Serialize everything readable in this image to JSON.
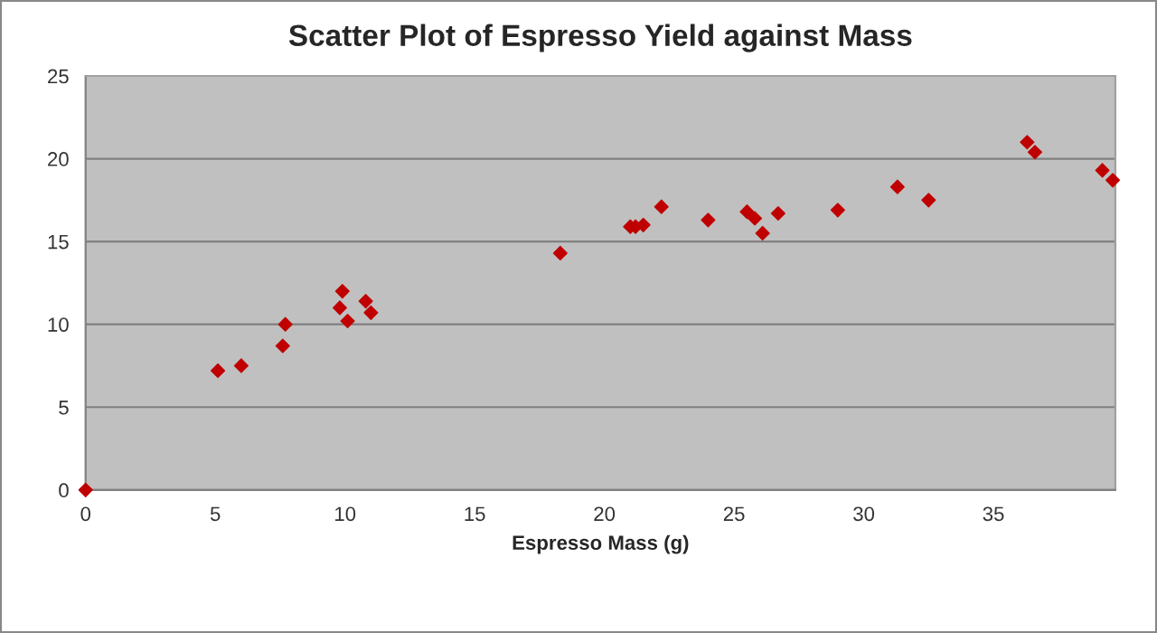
{
  "chart_data": {
    "type": "scatter",
    "title": "Scatter Plot of Espresso Yield against Mass",
    "xlabel": "Espresso Mass (g)",
    "series": [
      {
        "color": "#c00000",
        "x": [
          0,
          5.1,
          6.0,
          7.6,
          7.7,
          9.9,
          9.8,
          10.1,
          10.8,
          11.0,
          18.3,
          21.0,
          21.2,
          21.5,
          22.2,
          24.0,
          25.5,
          25.8,
          26.1,
          26.7,
          29.0,
          31.3,
          32.5,
          36.3,
          36.6,
          39.2,
          39.6
        ],
        "values": [
          0,
          7.2,
          7.5,
          8.7,
          10.0,
          12.0,
          11.0,
          10.2,
          11.4,
          10.7,
          14.3,
          15.9,
          15.9,
          16.0,
          17.1,
          16.3,
          16.8,
          16.4,
          15.5,
          16.7,
          16.9,
          18.3,
          17.5,
          21.0,
          20.4,
          19.3,
          18.7
        ]
      }
    ],
    "xlim": [
      0,
      39.7
    ],
    "ylim": [
      0,
      25
    ],
    "xticks": [
      0,
      5,
      10,
      15,
      20,
      25,
      30,
      35
    ],
    "yticks": [
      0,
      5,
      10,
      15,
      20,
      25
    ],
    "grid": "y",
    "marker": "diamond",
    "legend": false
  }
}
